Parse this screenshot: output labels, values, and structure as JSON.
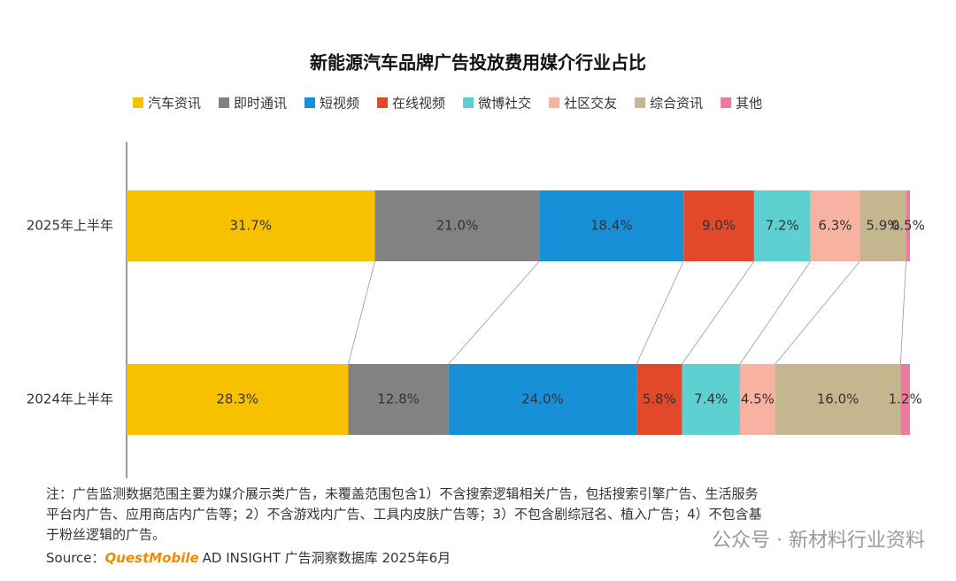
{
  "chart_data": {
    "type": "stacked_bar_horizontal",
    "title": "新能源汽车品牌广告投放费用媒介行业占比",
    "categories": [
      "2025年上半年",
      "2024年上半年"
    ],
    "xlim": [
      0,
      100
    ],
    "series": [
      {
        "name": "汽车资讯",
        "color": "#f7c100",
        "values": [
          31.7,
          28.3
        ],
        "value_labels": [
          "31.7%",
          "28.3%"
        ]
      },
      {
        "name": "即时通讯",
        "color": "#828282",
        "values": [
          21.0,
          12.8
        ],
        "value_labels": [
          "21.0%",
          "12.8%"
        ]
      },
      {
        "name": "短视频",
        "color": "#1790d8",
        "values": [
          18.4,
          24.0
        ],
        "value_labels": [
          "18.4%",
          "24.0%"
        ]
      },
      {
        "name": "在线视频",
        "color": "#e2492a",
        "values": [
          9.0,
          5.8
        ],
        "value_labels": [
          "9.0%",
          "5.8%"
        ]
      },
      {
        "name": "微博社交",
        "color": "#5fd0d2",
        "values": [
          7.2,
          7.4
        ],
        "value_labels": [
          "7.2%",
          "7.4%"
        ]
      },
      {
        "name": "社区交友",
        "color": "#f8b2a2",
        "values": [
          6.3,
          4.5
        ],
        "value_labels": [
          "6.3%",
          "4.5%"
        ]
      },
      {
        "name": "综合资讯",
        "color": "#c4b78f",
        "values": [
          5.9,
          16.0
        ],
        "value_labels": [
          "5.9%",
          "16.0%"
        ]
      },
      {
        "name": "其他",
        "color": "#e97b9b",
        "values": [
          0.5,
          1.2
        ],
        "value_labels": [
          "0.5%",
          "1.2%"
        ]
      }
    ]
  },
  "note": [
    "注：广告监测数据范围主要为媒介展示类广告，未覆盖范围包含1）不含搜索逻辑相关广告，包括搜索引擎广告、生活服务",
    "平台内广告、应用商店内广告等；2）不含游戏内广告、工具内皮肤广告等；3）不包含剧综冠名、植入广告；4）不包含基",
    "于粉丝逻辑的广告。"
  ],
  "source": {
    "label": "Source：",
    "brand": "QuestMobile",
    "text": "AD INSIGHT 广告洞察数据库 2025年6月"
  },
  "watermark": "公众号 · 新材料行业资料"
}
